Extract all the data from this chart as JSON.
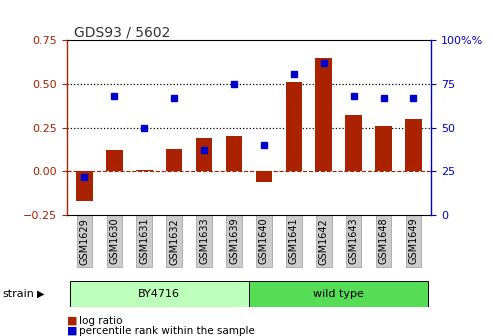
{
  "title": "GDS93 / 5602",
  "samples": [
    "GSM1629",
    "GSM1630",
    "GSM1631",
    "GSM1632",
    "GSM1633",
    "GSM1639",
    "GSM1640",
    "GSM1641",
    "GSM1642",
    "GSM1643",
    "GSM1648",
    "GSM1649"
  ],
  "log_ratio": [
    -0.17,
    0.12,
    0.01,
    0.13,
    0.19,
    0.2,
    -0.06,
    0.51,
    0.65,
    0.32,
    0.26,
    0.3
  ],
  "percentile": [
    22,
    68,
    50,
    67,
    37,
    75,
    40,
    81,
    87,
    68,
    67,
    67
  ],
  "bar_color": "#aa2200",
  "dot_color": "#0000cc",
  "ylim_left": [
    -0.25,
    0.75
  ],
  "ylim_right": [
    0,
    100
  ],
  "yticks_left": [
    -0.25,
    0.0,
    0.25,
    0.5,
    0.75
  ],
  "yticks_right": [
    0,
    25,
    50,
    75,
    100
  ],
  "hlines": [
    0.25,
    0.5
  ],
  "zero_line": 0.0,
  "strain_groups": [
    {
      "label": "BY4716",
      "start": 0,
      "end": 6,
      "color": "#bbffbb"
    },
    {
      "label": "wild type",
      "start": 6,
      "end": 12,
      "color": "#55dd55"
    }
  ],
  "strain_label": "strain",
  "legend_bar_label": "log ratio",
  "legend_dot_label": "percentile rank within the sample",
  "title_color": "#333333",
  "xtick_bg": "#cccccc",
  "plot_bg": "white"
}
